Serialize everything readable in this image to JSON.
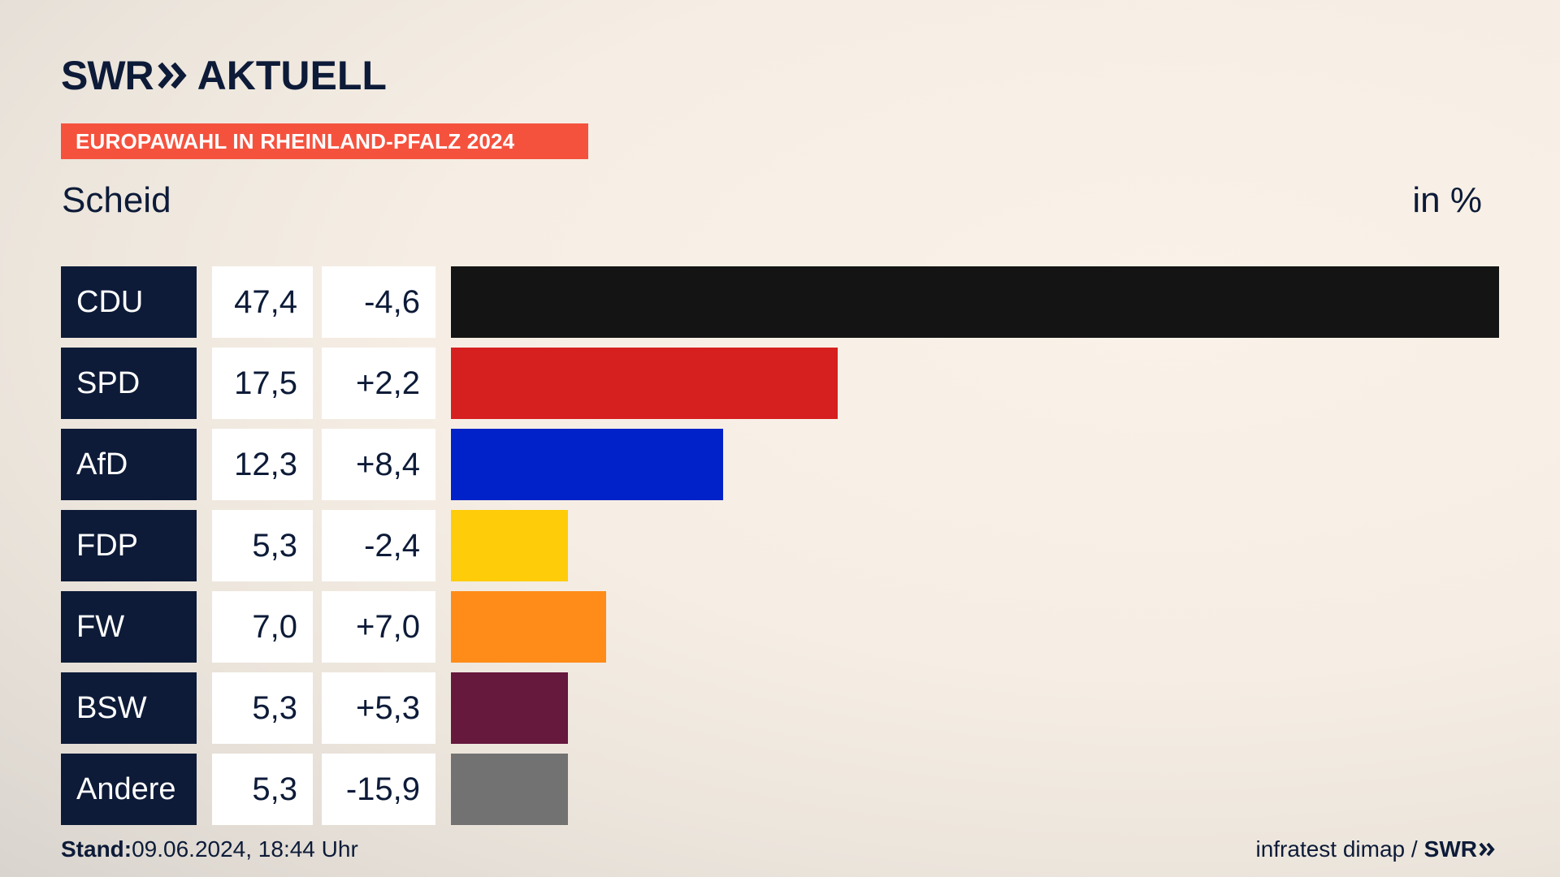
{
  "brand": {
    "name": "SWR",
    "product": "AKTUELL"
  },
  "banner": "EUROPAWAHL IN RHEINLAND-PFALZ 2024",
  "region": "Scheid",
  "unit_label": "in %",
  "footer": {
    "stand_label": "Stand:",
    "stand_value": "09.06.2024, 18:44 Uhr",
    "source": "infratest dimap /",
    "source_brand": "SWR"
  },
  "chart_data": {
    "type": "bar",
    "orientation": "horizontal",
    "title": "Scheid",
    "unit": "in %",
    "categories": [
      "CDU",
      "SPD",
      "AfD",
      "FDP",
      "FW",
      "BSW",
      "Andere"
    ],
    "values": [
      47.4,
      17.5,
      12.3,
      5.3,
      7.0,
      5.3,
      5.3
    ],
    "value_labels": [
      "47,4",
      "17,5",
      "12,3",
      "5,3",
      "7,0",
      "5,3",
      "5,3"
    ],
    "changes": [
      -4.6,
      2.2,
      8.4,
      -2.4,
      7.0,
      5.3,
      -15.9
    ],
    "change_labels": [
      "-4,6",
      "+2,2",
      "+8,4",
      "-2,4",
      "+7,0",
      "+5,3",
      "-15,9"
    ],
    "colors": [
      "#141414",
      "#d61f1f",
      "#0022c8",
      "#ffcc0a",
      "#ff8c18",
      "#66183d",
      "#727272"
    ],
    "xlim": [
      0,
      47.4
    ]
  }
}
